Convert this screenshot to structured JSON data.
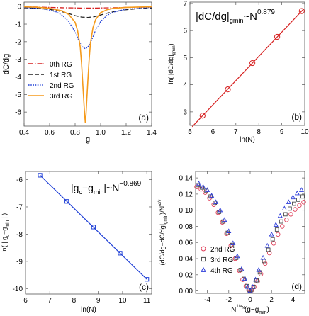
{
  "chart_data": [
    {
      "panel": "(a)",
      "type": "line",
      "xlabel": "g",
      "ylabel": "dC/dg",
      "xlim": [
        0.4,
        1.4
      ],
      "ylim": [
        -6.8,
        0.25
      ],
      "xticks": [
        "0.4",
        "0.6",
        "0.8",
        "1.0",
        "1.2",
        "1.4"
      ],
      "yticks": [
        "0",
        "-1",
        "-2",
        "-3",
        "-4",
        "-5",
        "-6"
      ],
      "legend_position": "left",
      "series": [
        {
          "name": "0th RG",
          "color": "#d62020",
          "dash": "dashdot",
          "x": [
            0.4,
            0.5,
            0.6,
            0.7,
            0.8,
            0.85,
            0.9,
            0.95,
            1.0,
            1.1,
            1.2,
            1.3,
            1.4
          ],
          "y": [
            -0.02,
            -0.03,
            -0.05,
            -0.07,
            -0.08,
            -0.09,
            -0.09,
            -0.09,
            -0.08,
            -0.07,
            -0.05,
            -0.04,
            -0.03
          ]
        },
        {
          "name": "1st RG",
          "color": "#222222",
          "dash": "dashed",
          "x": [
            0.4,
            0.5,
            0.6,
            0.65,
            0.7,
            0.75,
            0.8,
            0.85,
            0.9,
            0.95,
            1.0,
            1.05,
            1.1,
            1.2,
            1.3,
            1.4
          ],
          "y": [
            -0.07,
            -0.1,
            -0.16,
            -0.22,
            -0.3,
            -0.4,
            -0.52,
            -0.6,
            -0.62,
            -0.58,
            -0.48,
            -0.38,
            -0.3,
            -0.18,
            -0.12,
            -0.08
          ]
        },
        {
          "name": "2nd RG",
          "color": "#1f3fd6",
          "dash": "dotted",
          "x": [
            0.4,
            0.5,
            0.6,
            0.65,
            0.7,
            0.75,
            0.8,
            0.83,
            0.86,
            0.88,
            0.9,
            0.93,
            0.96,
            1.0,
            1.05,
            1.1,
            1.2,
            1.3,
            1.4
          ],
          "y": [
            -0.05,
            -0.09,
            -0.2,
            -0.3,
            -0.5,
            -0.85,
            -1.45,
            -1.95,
            -2.3,
            -2.4,
            -2.3,
            -1.9,
            -1.35,
            -0.85,
            -0.5,
            -0.32,
            -0.15,
            -0.08,
            -0.05
          ]
        },
        {
          "name": "3rd RG",
          "color": "#f59a1b",
          "dash": "solid",
          "x": [
            0.4,
            0.5,
            0.6,
            0.7,
            0.75,
            0.8,
            0.82,
            0.84,
            0.85,
            0.86,
            0.87,
            0.875,
            0.88,
            0.885,
            0.89,
            0.9,
            0.91,
            0.92,
            0.94,
            0.96,
            1.0,
            1.05,
            1.1,
            1.2,
            1.3,
            1.4
          ],
          "y": [
            -0.02,
            -0.04,
            -0.1,
            -0.25,
            -0.45,
            -0.9,
            -1.4,
            -2.3,
            -3.2,
            -4.4,
            -5.6,
            -6.2,
            -6.6,
            -6.2,
            -5.5,
            -4.2,
            -3.0,
            -2.1,
            -1.2,
            -0.75,
            -0.35,
            -0.18,
            -0.1,
            -0.05,
            -0.03,
            -0.02
          ]
        }
      ]
    },
    {
      "panel": "(b)",
      "type": "scatter",
      "annotation_prefix": "|dC/dg|",
      "annotation_subscript": "gmin",
      "annotation_mid": "~N",
      "annotation_exponent": "0.879",
      "xlabel": "ln(N)",
      "ylabel": "ln( |dC/dg|",
      "ylabel_subscript": "gmin",
      "ylabel_close": ")",
      "xlim": [
        5,
        10
      ],
      "ylim": [
        2.5,
        7.05
      ],
      "xticks": [
        "5",
        "6",
        "7",
        "8",
        "9",
        "10"
      ],
      "yticks": [
        "3",
        "4",
        "5",
        "6",
        "7"
      ],
      "point_color": "#d62020",
      "fit_color": "#d62020",
      "points": [
        {
          "x": 5.55,
          "y": 2.86
        },
        {
          "x": 6.65,
          "y": 3.83
        },
        {
          "x": 7.72,
          "y": 4.8
        },
        {
          "x": 8.8,
          "y": 5.77
        },
        {
          "x": 9.87,
          "y": 6.72
        }
      ]
    },
    {
      "panel": "(c)",
      "type": "scatter",
      "annotation_prefix": "|g",
      "annotation_subscript": "c",
      "annotation_mid": "−g",
      "annotation_subscript2": "min",
      "annotation_suffix": "|~N",
      "annotation_exponent": "−0.869",
      "xlabel": "ln(N)",
      "ylabel": "ln( | g",
      "ylabel_subscript": "c",
      "ylabel_rest": "−g",
      "ylabel_subscript2": "min",
      "ylabel_close": " | )",
      "xlim": [
        6,
        11.2
      ],
      "ylim": [
        -10.2,
        -5.7
      ],
      "xticks": [
        "6",
        "7",
        "8",
        "9",
        "10",
        "11"
      ],
      "yticks": [
        "-6",
        "-7",
        "-8",
        "-9",
        "-10"
      ],
      "point_color": "#1f3fd6",
      "fit_color": "#1f3fd6",
      "points": [
        {
          "x": 6.6,
          "y": -5.84
        },
        {
          "x": 7.7,
          "y": -6.8
        },
        {
          "x": 8.8,
          "y": -7.74
        },
        {
          "x": 9.9,
          "y": -8.7
        },
        {
          "x": 11.0,
          "y": -9.66
        }
      ]
    },
    {
      "panel": "(d)",
      "type": "scatter",
      "xlabel_main": "N",
      "xlabel_exponent": "1/ν",
      "xlabel_exponent_sub": "N",
      "xlabel_rest": "(g−g",
      "xlabel_subscript": "min",
      "xlabel_close": ")",
      "ylabel_main": "(dC/dg−dC/dg|",
      "ylabel_subscript": "gmin",
      "ylabel_rest": ")/N",
      "ylabel_exponent": "ω/ν",
      "xlim": [
        -5.1,
        5.1
      ],
      "ylim": [
        -0.003,
        0.148
      ],
      "xticks": [
        "-4",
        "-2",
        "0",
        "2",
        "4"
      ],
      "yticks": [
        "0.00",
        "0.02",
        "0.04",
        "0.06",
        "0.08",
        "0.10",
        "0.12",
        "0.14"
      ],
      "legend_position": "bottom-left",
      "series": [
        {
          "name": "2nd RG",
          "marker": "circle",
          "color": "#e0405a",
          "x": [
            -5,
            -4.6,
            -4.2,
            -3.8,
            -3.4,
            -3.0,
            -2.6,
            -2.2,
            -1.8,
            -1.4,
            -1.0,
            -0.7,
            -0.4,
            -0.15,
            0,
            0.15,
            0.4,
            0.7,
            1.0,
            1.4,
            1.8,
            2.2,
            2.6,
            3.0,
            3.4,
            3.8,
            4.2,
            4.6,
            5.0
          ],
          "y": [
            0.129,
            0.126,
            0.122,
            0.115,
            0.107,
            0.097,
            0.085,
            0.071,
            0.056,
            0.04,
            0.025,
            0.014,
            0.006,
            0.001,
            0.0,
            0.001,
            0.005,
            0.012,
            0.021,
            0.034,
            0.047,
            0.059,
            0.07,
            0.08,
            0.088,
            0.095,
            0.101,
            0.106,
            0.11
          ]
        },
        {
          "name": "3rd RG",
          "marker": "square",
          "color": "#4a4a4a",
          "x": [
            -4.9,
            -4.5,
            -4.1,
            -3.7,
            -3.3,
            -2.9,
            -2.5,
            -2.1,
            -1.7,
            -1.3,
            -0.9,
            -0.6,
            -0.3,
            -0.1,
            0.1,
            0.3,
            0.6,
            0.9,
            1.3,
            1.7,
            2.1,
            2.5,
            2.9,
            3.3,
            3.7,
            4.1,
            4.5,
            4.9
          ],
          "y": [
            0.131,
            0.128,
            0.124,
            0.117,
            0.109,
            0.098,
            0.086,
            0.072,
            0.057,
            0.041,
            0.026,
            0.015,
            0.006,
            0.001,
            0.001,
            0.005,
            0.013,
            0.023,
            0.037,
            0.051,
            0.064,
            0.076,
            0.086,
            0.095,
            0.102,
            0.108,
            0.113,
            0.117
          ]
        },
        {
          "name": "4th RG",
          "marker": "triangle",
          "color": "#2b3bd9",
          "x": [
            -4.8,
            -4.4,
            -4.0,
            -3.6,
            -3.2,
            -2.8,
            -2.4,
            -2.0,
            -1.6,
            -1.2,
            -0.8,
            -0.5,
            -0.25,
            0,
            0.25,
            0.5,
            0.8,
            1.2,
            1.6,
            2.0,
            2.4,
            2.8,
            3.2,
            3.6,
            4.0,
            4.4,
            4.8
          ],
          "y": [
            0.133,
            0.129,
            0.125,
            0.118,
            0.11,
            0.1,
            0.088,
            0.074,
            0.059,
            0.043,
            0.027,
            0.015,
            0.005,
            0.0,
            0.005,
            0.014,
            0.026,
            0.041,
            0.056,
            0.07,
            0.082,
            0.093,
            0.102,
            0.11,
            0.116,
            0.121,
            0.125
          ]
        }
      ]
    }
  ]
}
